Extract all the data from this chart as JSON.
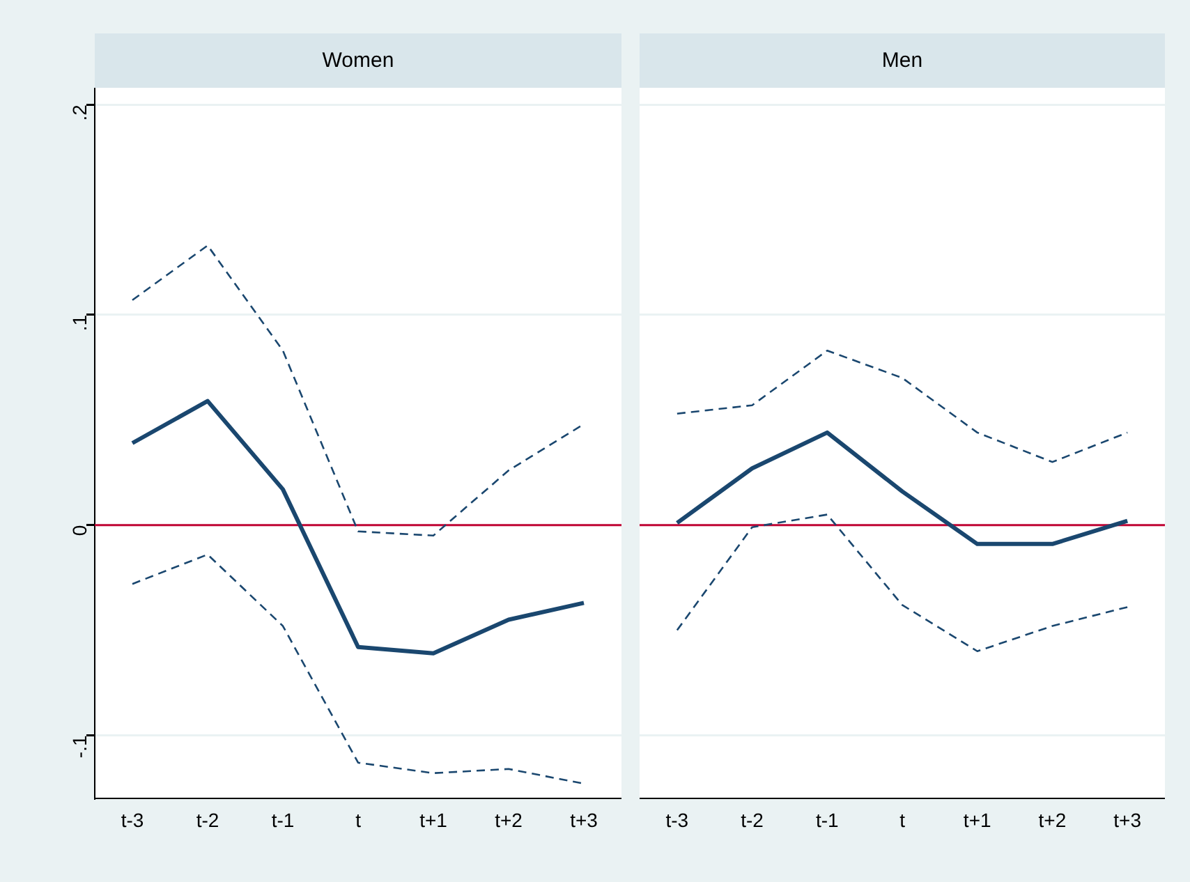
{
  "chart_data": [
    {
      "type": "line",
      "title": "Women",
      "categories": [
        "t-3",
        "t-2",
        "t-1",
        "t",
        "t+1",
        "t+2",
        "t+3"
      ],
      "series": [
        {
          "color": "#1a476f",
          "line_style": "solid",
          "values": [
            0.039,
            0.059,
            0.017,
            -0.058,
            -0.061,
            -0.045,
            -0.037
          ]
        },
        {
          "color": "#1a476f",
          "line_style": "dashed",
          "values": [
            0.107,
            0.133,
            0.083,
            -0.003,
            -0.005,
            0.026,
            0.048
          ]
        },
        {
          "color": "#1a476f",
          "line_style": "dashed",
          "values": [
            -0.028,
            -0.014,
            -0.048,
            -0.113,
            -0.118,
            -0.116,
            -0.123
          ]
        }
      ],
      "ylim": [
        -0.13,
        0.208
      ],
      "yticks": [
        {
          "value": -0.1,
          "label": "-.1"
        },
        {
          "value": 0,
          "label": "0"
        },
        {
          "value": 0.1,
          "label": ".1"
        },
        {
          "value": 0.2,
          "label": ".2"
        }
      ],
      "grid": "y",
      "legend": false,
      "marker": "none",
      "ref_lines": [
        {
          "axis": "y",
          "value": 0,
          "color": "#c10534"
        }
      ]
    },
    {
      "type": "line",
      "title": "Men",
      "categories": [
        "t-3",
        "t-2",
        "t-1",
        "t",
        "t+1",
        "t+2",
        "t+3"
      ],
      "series": [
        {
          "color": "#1a476f",
          "line_style": "solid",
          "values": [
            0.001,
            0.027,
            0.044,
            0.016,
            -0.009,
            -0.009,
            0.002
          ]
        },
        {
          "color": "#1a476f",
          "line_style": "dashed",
          "values": [
            0.053,
            0.057,
            0.083,
            0.07,
            0.044,
            0.03,
            0.044
          ]
        },
        {
          "color": "#1a476f",
          "line_style": "dashed",
          "values": [
            -0.05,
            -0.001,
            0.005,
            -0.038,
            -0.06,
            -0.048,
            -0.039
          ]
        }
      ],
      "ylim": [
        -0.13,
        0.208
      ],
      "yticks": [
        -0.1,
        0,
        0.1,
        0.2
      ],
      "grid": "y",
      "legend": false,
      "marker": "none",
      "tick_labels": "x",
      "ref_lines": [
        {
          "axis": "y",
          "value": 0,
          "color": "#c10534"
        }
      ]
    }
  ]
}
